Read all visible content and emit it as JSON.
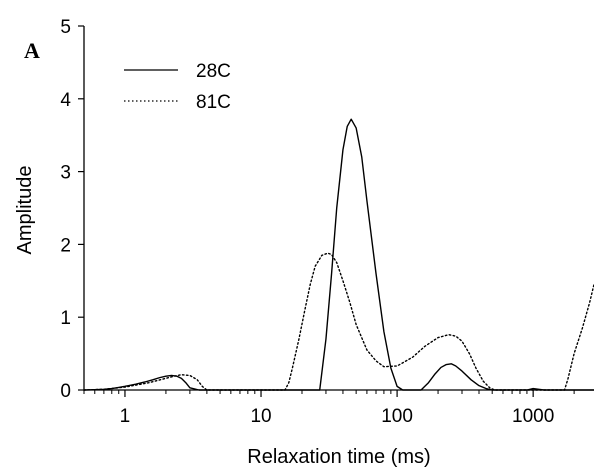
{
  "chart_data": {
    "type": "line",
    "panel_label": "A",
    "title": "",
    "xlabel": "Relaxation time (ms)",
    "ylabel": "Amplitude",
    "xscale": "log",
    "xlim": [
      0.5,
      2800
    ],
    "ylim": [
      0,
      5
    ],
    "xticks": [
      1,
      10,
      100,
      1000
    ],
    "xtick_labels": [
      "1",
      "10",
      "100",
      "1000"
    ],
    "yticks": [
      0,
      1,
      2,
      3,
      4,
      5
    ],
    "ytick_labels": [
      "0",
      "1",
      "2",
      "3",
      "4",
      "5"
    ],
    "grid": false,
    "legend_position": "top-left",
    "series": [
      {
        "name": "28C",
        "style": "solid",
        "color": "#000000",
        "x": [
          0.5,
          0.6,
          0.7,
          0.8,
          0.9,
          1.0,
          1.2,
          1.4,
          1.6,
          1.8,
          2.0,
          2.2,
          2.4,
          2.6,
          2.8,
          3.0,
          3.5,
          5,
          10,
          20,
          25,
          27,
          30,
          33,
          36,
          40,
          43,
          46,
          50,
          55,
          60,
          70,
          80,
          90,
          100,
          110,
          150,
          170,
          190,
          210,
          230,
          250,
          270,
          300,
          350,
          400,
          450,
          500,
          700,
          900,
          1000,
          1100,
          1200,
          1500,
          2000,
          2800
        ],
        "y": [
          0,
          0.005,
          0.01,
          0.02,
          0.035,
          0.05,
          0.08,
          0.11,
          0.14,
          0.17,
          0.19,
          0.2,
          0.19,
          0.16,
          0.1,
          0.03,
          0,
          0,
          0,
          0,
          0,
          0,
          0.7,
          1.6,
          2.5,
          3.3,
          3.62,
          3.72,
          3.6,
          3.2,
          2.6,
          1.6,
          0.8,
          0.3,
          0.05,
          0,
          0,
          0.1,
          0.22,
          0.31,
          0.35,
          0.36,
          0.33,
          0.26,
          0.14,
          0.06,
          0.02,
          0,
          0,
          0,
          0.02,
          0.01,
          0,
          0,
          0,
          0
        ]
      },
      {
        "name": "81C",
        "style": "dotted",
        "color": "#000000",
        "x": [
          0.5,
          0.7,
          1.0,
          1.5,
          2.0,
          2.3,
          2.6,
          3.0,
          3.4,
          3.7,
          4.0,
          10,
          15,
          16,
          17,
          19,
          21,
          23,
          25,
          28,
          31,
          33,
          36,
          40,
          45,
          50,
          60,
          70,
          80,
          100,
          130,
          160,
          200,
          240,
          270,
          300,
          340,
          380,
          430,
          480,
          520,
          1000,
          1700,
          1800,
          2000,
          2300,
          2600,
          2800
        ],
        "y": [
          0,
          0.01,
          0.04,
          0.1,
          0.16,
          0.19,
          0.21,
          0.2,
          0.14,
          0.05,
          0,
          0,
          0,
          0.1,
          0.3,
          0.7,
          1.1,
          1.45,
          1.7,
          1.85,
          1.88,
          1.86,
          1.75,
          1.5,
          1.2,
          0.9,
          0.55,
          0.4,
          0.32,
          0.33,
          0.45,
          0.6,
          0.72,
          0.76,
          0.74,
          0.67,
          0.5,
          0.3,
          0.12,
          0.03,
          0,
          0,
          0,
          0.15,
          0.5,
          0.85,
          1.2,
          1.45
        ]
      }
    ]
  }
}
